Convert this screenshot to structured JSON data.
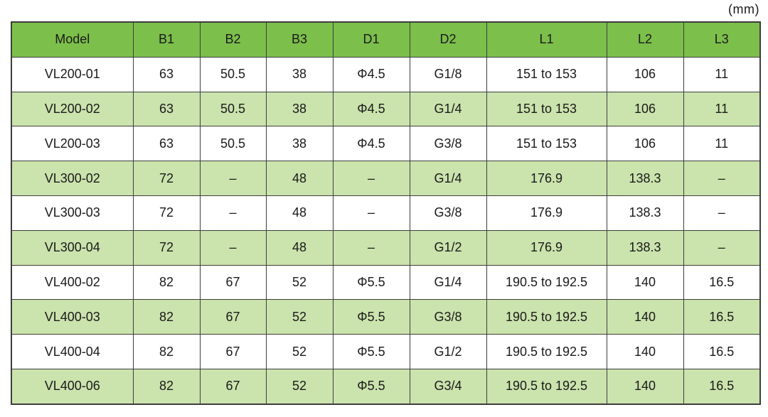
{
  "unit_label": "(mm)",
  "table": {
    "columns": [
      "Model",
      "B1",
      "B2",
      "B3",
      "D1",
      "D2",
      "L1",
      "L2",
      "L3"
    ],
    "rows": [
      [
        "VL200-01",
        "63",
        "50.5",
        "38",
        "Φ4.5",
        "G1/8",
        "151 to 153",
        "106",
        "11"
      ],
      [
        "VL200-02",
        "63",
        "50.5",
        "38",
        "Φ4.5",
        "G1/4",
        "151 to 153",
        "106",
        "11"
      ],
      [
        "VL200-03",
        "63",
        "50.5",
        "38",
        "Φ4.5",
        "G3/8",
        "151 to 153",
        "106",
        "11"
      ],
      [
        "VL300-02",
        "72",
        "–",
        "48",
        "–",
        "G1/4",
        "176.9",
        "138.3",
        "–"
      ],
      [
        "VL300-03",
        "72",
        "–",
        "48",
        "–",
        "G3/8",
        "176.9",
        "138.3",
        "–"
      ],
      [
        "VL300-04",
        "72",
        "–",
        "48",
        "–",
        "G1/2",
        "176.9",
        "138.3",
        "–"
      ],
      [
        "VL400-02",
        "82",
        "67",
        "52",
        "Φ5.5",
        "G1/4",
        "190.5 to 192.5",
        "140",
        "16.5"
      ],
      [
        "VL400-03",
        "82",
        "67",
        "52",
        "Φ5.5",
        "G3/8",
        "190.5 to 192.5",
        "140",
        "16.5"
      ],
      [
        "VL400-04",
        "82",
        "67",
        "52",
        "Φ5.5",
        "G1/2",
        "190.5 to 192.5",
        "140",
        "16.5"
      ],
      [
        "VL400-06",
        "82",
        "67",
        "52",
        "Φ5.5",
        "G3/4",
        "190.5 to 192.5",
        "140",
        "16.5"
      ]
    ]
  },
  "colors": {
    "header_bg": "#7cbf4b",
    "row_alt_bg": "#cbe3ad",
    "row_bg": "#ffffff",
    "border": "#3d3d3d",
    "text": "#1a1a1a"
  }
}
